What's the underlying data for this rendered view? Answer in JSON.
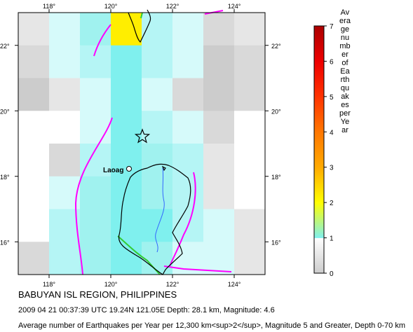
{
  "map": {
    "lon_ticks": [
      "118°",
      "120°",
      "122°",
      "124°"
    ],
    "lat_ticks": [
      "16°",
      "18°",
      "20°",
      "22°"
    ],
    "city_label": "Laoag",
    "epicenter_marker": "star-icon"
  },
  "grid": {
    "lon_min": 117,
    "lon_max": 125,
    "lat_min": 15,
    "lat_max": 23,
    "cols": 8,
    "rows": 8,
    "rows_top_to_bottom": [
      [
        "g1",
        "c1",
        "c3",
        "y",
        "c2",
        "c1",
        "g2",
        "g1"
      ],
      [
        "g2",
        "c1",
        "c2",
        "c4",
        "c2",
        "c1",
        "g3",
        "g2"
      ],
      [
        "g3",
        "g1",
        "c1",
        "c4",
        "c1",
        "g2",
        "g3",
        "g2"
      ],
      [
        "w",
        "w",
        "c1",
        "c4",
        "c2",
        "c1",
        "g2",
        "w"
      ],
      [
        "w",
        "g2",
        "c2",
        "c4",
        "c3",
        "c2",
        "g1",
        "w"
      ],
      [
        "w",
        "c1",
        "c3",
        "c4",
        "c3",
        "c2",
        "g1",
        "w"
      ],
      [
        "w",
        "c2",
        "c3",
        "c4",
        "c4",
        "c2",
        "c1",
        "g1"
      ],
      [
        "g2",
        "c2",
        "c3",
        "c4",
        "c3",
        "c1",
        "c1",
        "g1"
      ]
    ],
    "palette": {
      "w": "#ffffff",
      "g1": "#e6e6e6",
      "g2": "#d9d9d9",
      "g3": "#cccccc",
      "c1": "#d6fafa",
      "c2": "#b5f5f5",
      "c3": "#a0f2ef",
      "c4": "#7ff0ee",
      "y": "#ffee00"
    }
  },
  "colorbar": {
    "ticks": [
      "0",
      "1",
      "2",
      "3",
      "4",
      "5",
      "6",
      "7"
    ],
    "label": "Average number of Earthquakes per Year"
  },
  "captions": {
    "title": "BABUYAN ISL REGION, PHILIPPINES",
    "event": "2009 04 21 00:37:39 UTC 19.24N 121.05E Depth: 28.1 km, Magnitude: 4.6",
    "footer": "Average number of Earthquakes per Year per 12,300 km<sup>2</sup>, Magnitude 5 and Greater, Depth 0-70 km"
  },
  "colors": {
    "plate_boundary": "#ff00ff",
    "transform_fault": "#33cc33",
    "river": "#3366ff",
    "coast": "#000000"
  }
}
